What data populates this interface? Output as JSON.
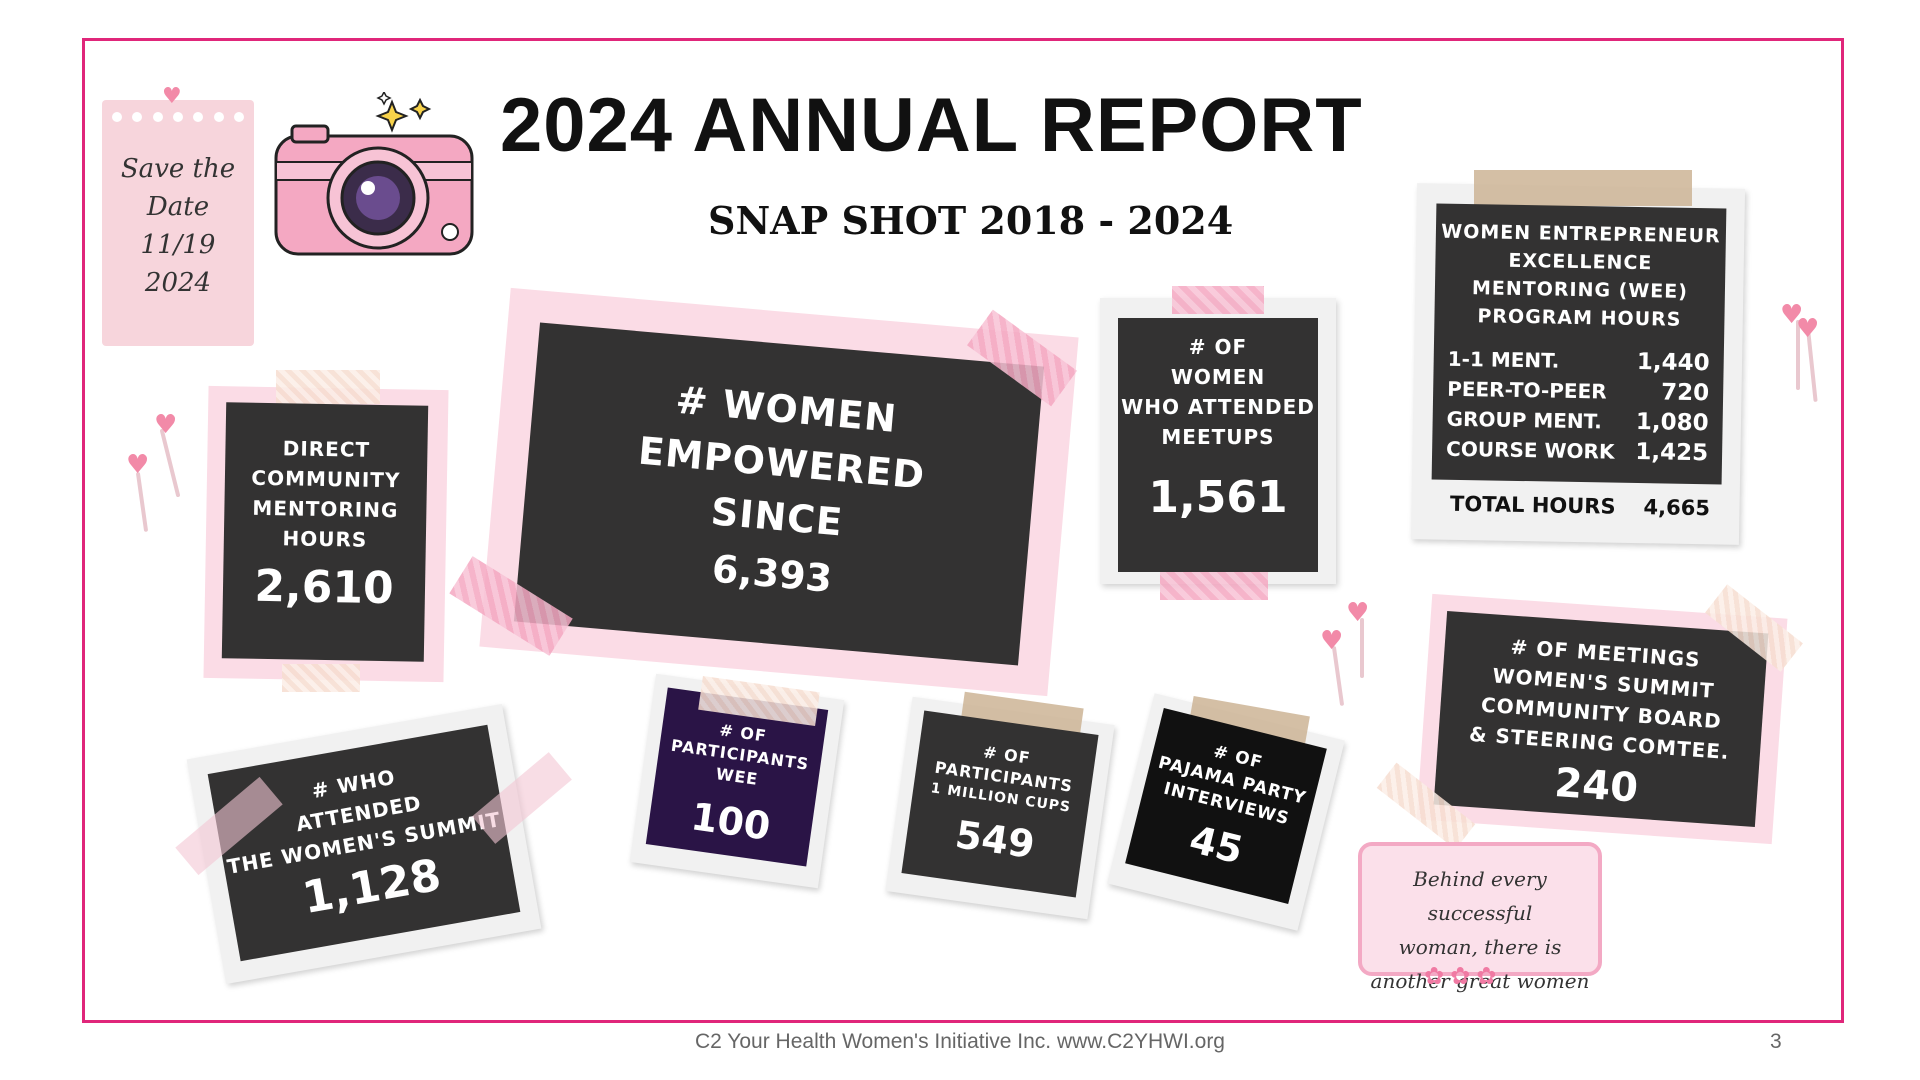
{
  "title": "2024 ANNUAL REPORT",
  "subtitle": "SNAP SHOT 2018 - 2024",
  "save_the_date": [
    "Save the",
    "Date",
    "11/19",
    "2024"
  ],
  "cards": {
    "mentoring": {
      "label": [
        "DIRECT",
        "COMMUNITY",
        "MENTORING",
        "HOURS"
      ],
      "value": "2,610"
    },
    "empowered": {
      "label": [
        "# WOMEN",
        "EMPOWERED",
        "SINCE"
      ],
      "value": "6,393"
    },
    "meetups": {
      "label": [
        "# OF",
        "WOMEN",
        "WHO ATTENDED",
        "MEETUPS"
      ],
      "value": "1,561"
    },
    "wee": {
      "label": [
        "WOMEN ENTREPRENEUR",
        "EXCELLENCE",
        "MENTORING (WEE)",
        "PROGRAM HOURS"
      ],
      "rows": [
        {
          "name": "1-1 MENT.",
          "value": "1,440"
        },
        {
          "name": "PEER-TO-PEER",
          "value": "720"
        },
        {
          "name": "GROUP MENT.",
          "value": "1,080"
        },
        {
          "name": "COURSE WORK",
          "value": "1,425"
        }
      ],
      "total_label": "TOTAL HOURS",
      "total_value": "4,665"
    },
    "summit": {
      "label": [
        "# WHO",
        "ATTENDED",
        "THE WOMEN'S SUMMIT"
      ],
      "value": "1,128"
    },
    "participants_wee": {
      "label": [
        "# OF",
        "PARTICIPANTS",
        "WEE"
      ],
      "value": "100"
    },
    "million_cups": {
      "label": [
        "# OF",
        "PARTICIPANTS",
        "1 MILLION CUPS"
      ],
      "value": "549"
    },
    "pajama": {
      "label": [
        "# OF",
        "PAJAMA PARTY",
        "INTERVIEWS"
      ],
      "value": "45"
    },
    "meetings": {
      "label": [
        "# OF MEETINGS",
        "WOMEN'S SUMMIT",
        "COMMUNITY BOARD",
        "& STEERING COMTEE."
      ],
      "value": "240"
    }
  },
  "quote": [
    "Behind every successful",
    "woman, there is",
    "another great women"
  ],
  "footer": "C2 Your Health Women's Initiative Inc. www.C2YHWI.org",
  "page_number": "3",
  "colors": {
    "frame": "#e0267a",
    "board": "#333232",
    "mat_pink": "#fbdce6",
    "accent_purple": "#2a1446"
  }
}
